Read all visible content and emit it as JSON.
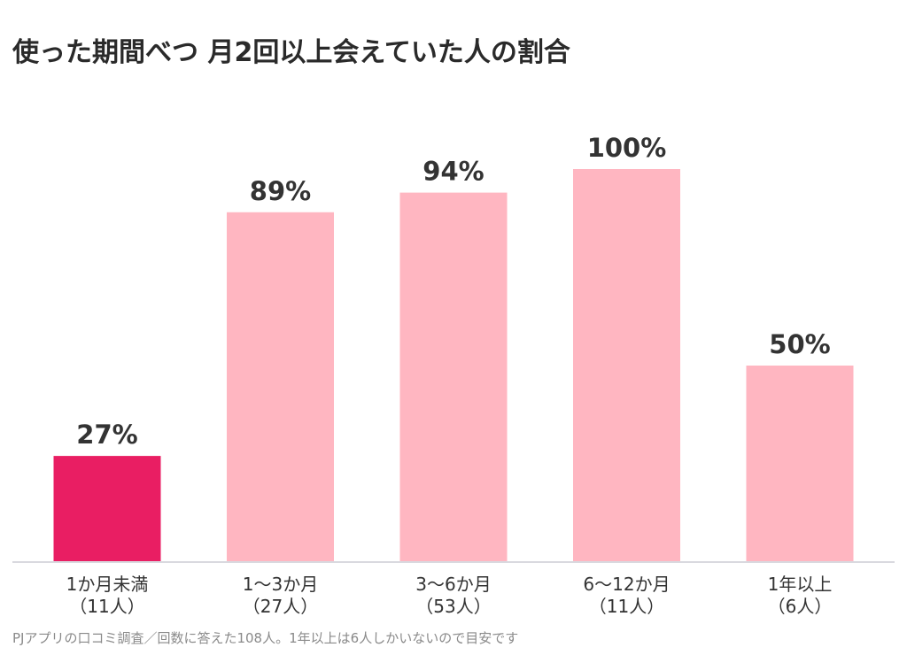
{
  "chart_data": {
    "type": "bar",
    "title": "使った期間べつ 月2回以上会えていた人の割合",
    "categories": [
      {
        "line1": "1か月未満",
        "line2": "（11人）"
      },
      {
        "line1": "1〜3か月",
        "line2": "（27人）"
      },
      {
        "line1": "3〜6か月",
        "line2": "（53人）"
      },
      {
        "line1": "6〜12か月",
        "line2": "（11人）"
      },
      {
        "line1": "1年以上",
        "line2": "（6人）"
      }
    ],
    "values": [
      27,
      89,
      94,
      100,
      50
    ],
    "value_labels": [
      "27%",
      "89%",
      "94%",
      "100%",
      "50%"
    ],
    "ylim": [
      0,
      100
    ],
    "grid": false,
    "colors": {
      "highlight": "#e91e63",
      "default": "#ffb6c1",
      "axis": "#d9d9df"
    },
    "highlight_index": 0,
    "note": "PJアプリの口コミ調査／回数に答えた108人。1年以上は6人しかいないので目安です"
  }
}
